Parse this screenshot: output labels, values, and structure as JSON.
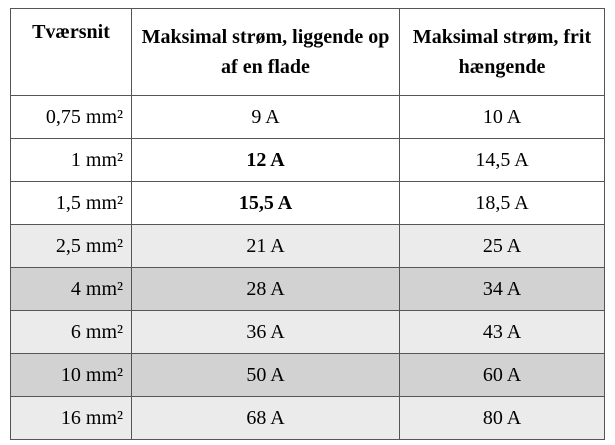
{
  "table": {
    "header": [
      "Tværsnit",
      "Maksimal strøm, liggende op af en flade",
      "Maksimal strøm, frit hængende"
    ],
    "rows": [
      [
        "0,75 mm²",
        "9 A",
        "10 A"
      ],
      [
        "1 mm²",
        "12 A",
        "14,5 A"
      ],
      [
        "1,5 mm²",
        "15,5 A",
        "18,5 A"
      ],
      [
        "2,5 mm²",
        "21 A",
        "25 A"
      ],
      [
        "4 mm²",
        "28 A",
        "34 A"
      ],
      [
        "6 mm²",
        "36 A",
        "43 A"
      ],
      [
        "10 mm²",
        "50 A",
        "60 A"
      ],
      [
        "16 mm²",
        "68 A",
        "80 A"
      ]
    ]
  }
}
